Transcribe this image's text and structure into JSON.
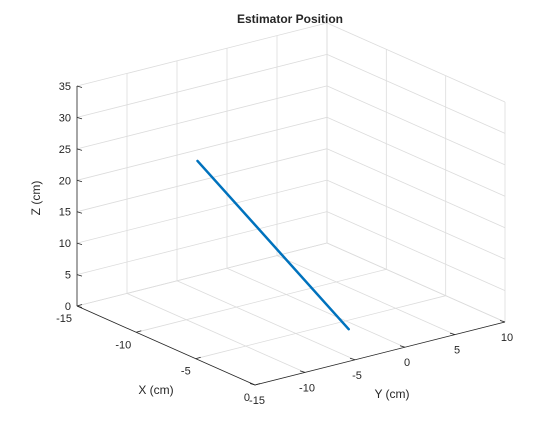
{
  "chart_data": {
    "type": "line",
    "title": "Estimator Position",
    "xlabel": "X (cm)",
    "ylabel": "Y (cm)",
    "zlabel": "Z (cm)",
    "xlim": [
      -15,
      0
    ],
    "ylim": [
      -15,
      10
    ],
    "zlim": [
      0,
      35
    ],
    "x_ticks": [
      -15,
      -10,
      -5,
      0
    ],
    "y_ticks": [
      -15,
      -10,
      -5,
      0,
      5,
      10
    ],
    "z_ticks": [
      0,
      5,
      10,
      15,
      20,
      25,
      30,
      35
    ],
    "grid": true,
    "series": [
      {
        "color": "#0072BD",
        "x": [
          -5.6,
          -3.9
        ],
        "y": [
          -14.1,
          -1.0
        ],
        "z": [
          30.6,
          0.0
        ]
      }
    ]
  }
}
